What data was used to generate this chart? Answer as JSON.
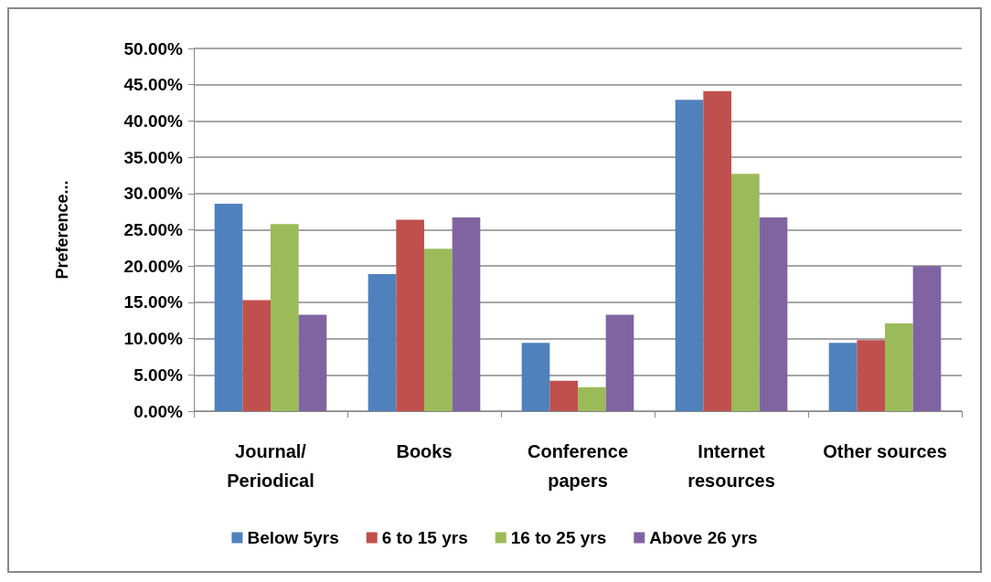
{
  "chart_data": {
    "type": "bar",
    "ylabel": "Preference...",
    "categories": [
      "Journal/\nPeriodical",
      "Books",
      "Conference\npapers",
      "Internet\nresources",
      "Other sources"
    ],
    "series": [
      {
        "name": "Below 5yrs",
        "color": "#4f81bd",
        "values": [
          28.6,
          18.9,
          9.4,
          42.9,
          9.4
        ]
      },
      {
        "name": "6 to 15 yrs",
        "color": "#c0504d",
        "values": [
          15.3,
          26.4,
          4.2,
          44.1,
          9.8
        ]
      },
      {
        "name": "16 to 25 yrs",
        "color": "#9bbb59",
        "values": [
          25.8,
          22.4,
          3.3,
          32.7,
          12.1
        ]
      },
      {
        "name": "Above 26 yrs",
        "color": "#8064a2",
        "values": [
          13.3,
          26.7,
          13.3,
          26.7,
          20.0
        ]
      }
    ],
    "ylim": [
      0,
      50
    ],
    "yticks": [
      {
        "value": 0,
        "label": "0.00%"
      },
      {
        "value": 5,
        "label": "5.00%"
      },
      {
        "value": 10,
        "label": "10.00%"
      },
      {
        "value": 15,
        "label": "15.00%"
      },
      {
        "value": 20,
        "label": "20.00%"
      },
      {
        "value": 25,
        "label": "25.00%"
      },
      {
        "value": 30,
        "label": "30.00%"
      },
      {
        "value": 35,
        "label": "35.00%"
      },
      {
        "value": 40,
        "label": "40.00%"
      },
      {
        "value": 45,
        "label": "45.00%"
      },
      {
        "value": 50,
        "label": "50.00%"
      }
    ],
    "grid": "y",
    "legend": "bottom"
  }
}
